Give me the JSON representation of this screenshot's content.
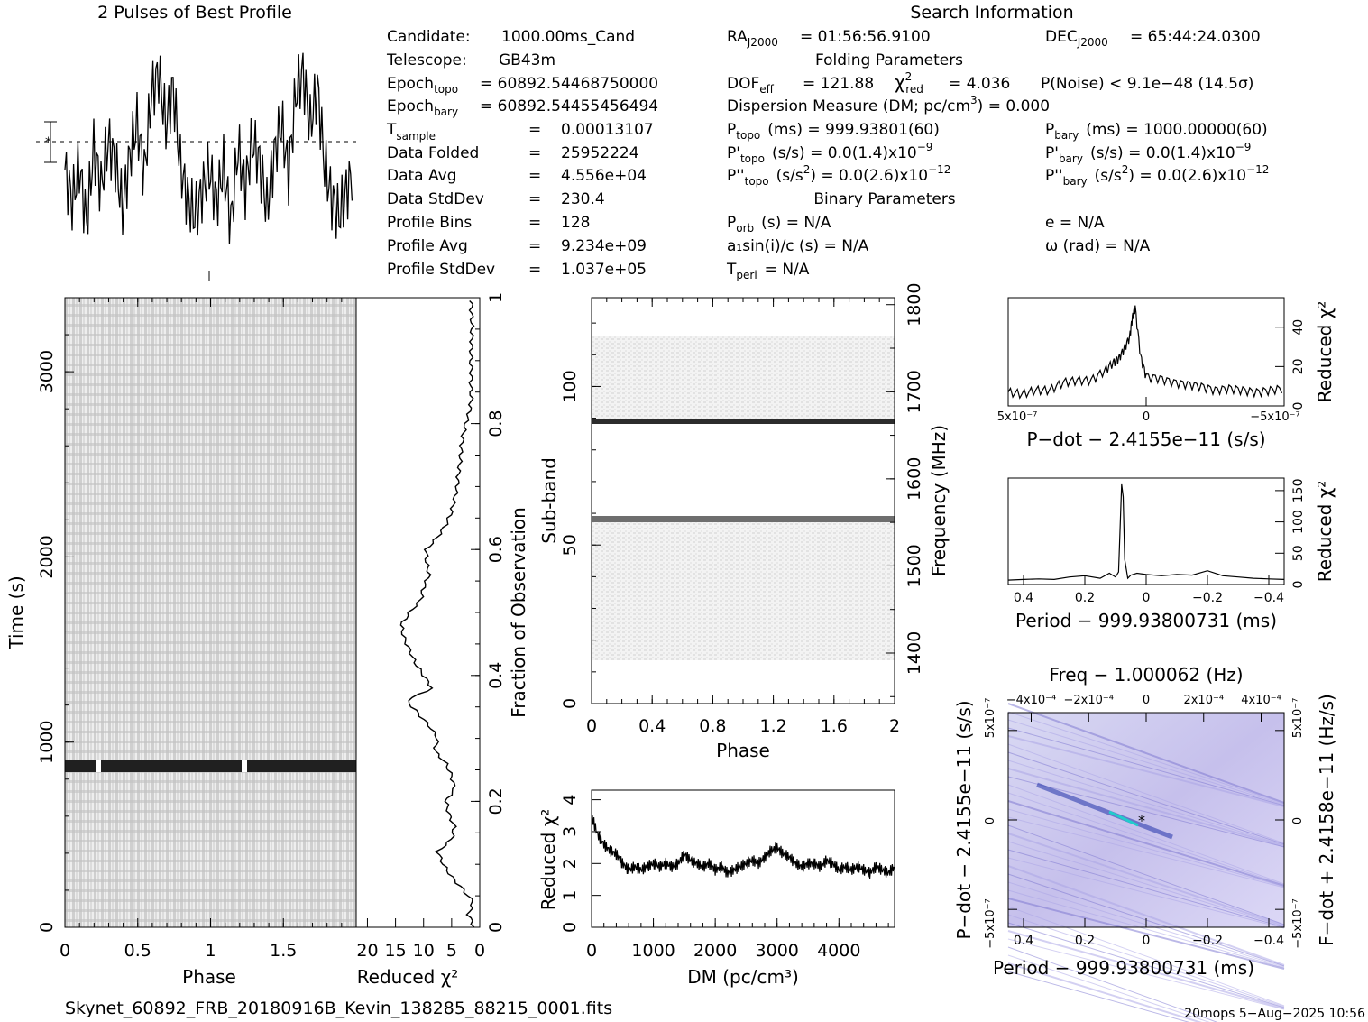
{
  "profile_title": "2 Pulses of Best Profile",
  "search_title": "Search Information",
  "candidate": {
    "candidate": {
      "label": "Candidate:",
      "value": "1000.00ms_Cand"
    },
    "telescope": {
      "label": "Telescope:",
      "value": "GB43m"
    },
    "epoch_topo": {
      "label": "Epoch",
      "sub": "topo",
      "value": "= 60892.54468750000"
    },
    "epoch_bary": {
      "label": "Epoch",
      "sub": "bary",
      "value": "= 60892.54455456494"
    },
    "t_sample": {
      "label": "T",
      "sub": "sample",
      "value": "0.00013107"
    },
    "data_folded": {
      "label": "Data Folded",
      "value": "25952224"
    },
    "data_avg": {
      "label": "Data Avg",
      "value": "4.556e+04"
    },
    "data_stddev": {
      "label": "Data StdDev",
      "value": "230.4"
    },
    "profile_bins": {
      "label": "Profile Bins",
      "value": "128"
    },
    "profile_avg": {
      "label": "Profile Avg",
      "value": "9.234e+09"
    },
    "profile_stddev": {
      "label": "Profile StdDev",
      "value": "1.037e+05"
    },
    "eq": "="
  },
  "search": {
    "ra": {
      "label": "RA",
      "sub": "J2000",
      "value": "= 01:56:56.9100"
    },
    "dec": {
      "label": "DEC",
      "sub": "J2000",
      "value": "= 65:44:24.0300"
    },
    "folding_title": "Folding Parameters",
    "dof": {
      "label": "DOF",
      "sub": "eff",
      "value": "= 121.88"
    },
    "chi": {
      "sub": "red",
      "value": "= 4.036"
    },
    "pnoise": "P(Noise) < 9.1e−48   (14.5σ)",
    "dm": "Dispersion Measure (DM; pc/cm",
    "dm_value": ") = 0.000",
    "p_topo": {
      "label": "P",
      "sub": "topo",
      "value": "(ms) =   999.93801(60)"
    },
    "p_bary": {
      "label": "P",
      "sub": "bary",
      "value": "(ms) =   1000.00000(60)"
    },
    "pd_topo": {
      "label": "P'",
      "sub": "topo",
      "value": "(s/s) = 0.0(1.4)x10",
      "exp": "−9"
    },
    "pd_bary": {
      "label": "P'",
      "sub": "bary",
      "value": "(s/s) = 0.0(1.4)x10",
      "exp": "−9"
    },
    "pdd_topo": {
      "label": "P''",
      "sub": "topo",
      "value": "(s/s",
      "value2": ") = 0.0(2.6)x10",
      "exp": "−12"
    },
    "pdd_bary": {
      "label": "P''",
      "sub": "bary",
      "value": "(s/s",
      "value2": ") = 0.0(2.6)x10",
      "exp": "−12"
    },
    "binary_title": "Binary Parameters",
    "p_orb": {
      "label": "P",
      "sub": "orb",
      "value": "(s) = N/A"
    },
    "e": "e = N/A",
    "a1": "a₁sin(i)/c (s) = N/A",
    "omega": "ω (rad) = N/A",
    "t_peri": {
      "label": "T",
      "sub": "peri",
      "value": "= N/A"
    }
  },
  "footer": {
    "filename": "Skynet_60892_FRB_20180916B_Kevin_138285_88215_0001.fits",
    "stamp": "20mops   5−Aug−2025 10:56"
  },
  "chart_data": [
    {
      "type": "line",
      "name": "profile",
      "title": "2 Pulses of Best Profile",
      "x": [
        0,
        0.05,
        0.1,
        0.15,
        0.2,
        0.25,
        0.3,
        0.35,
        0.4,
        0.45,
        0.5,
        0.55,
        0.6,
        0.65,
        0.7,
        0.75,
        0.8,
        0.85,
        0.9,
        0.95,
        1.0,
        1.05,
        1.1,
        1.15,
        1.2,
        1.25,
        1.3,
        1.35,
        1.4,
        1.45,
        1.5,
        1.55,
        1.6,
        1.65,
        1.7,
        1.75,
        1.8,
        1.85,
        1.9,
        1.95,
        2.0
      ],
      "y": [
        0.3,
        -0.6,
        0.4,
        -1.2,
        0.9,
        -0.2,
        1.1,
        0.5,
        -0.8,
        0.7,
        1.6,
        0.2,
        2.4,
        3.0,
        1.5,
        2.6,
        0.4,
        -0.5,
        -1.0,
        -0.3,
        0.3,
        -0.6,
        0.4,
        -1.2,
        0.9,
        -0.2,
        1.1,
        0.5,
        -0.8,
        0.7,
        1.6,
        0.2,
        2.4,
        3.0,
        1.5,
        2.6,
        0.4,
        -0.5,
        -1.0,
        -0.3,
        0.3
      ]
    },
    {
      "type": "heatmap",
      "name": "time-phase",
      "xlabel": "Phase",
      "ylabel": "Time (s)",
      "xlim": [
        0,
        2
      ],
      "ylim": [
        0,
        3400
      ],
      "x_ticks": [
        "0",
        "0.5",
        "1",
        "1.5"
      ],
      "y_ticks": [
        "0",
        "1000",
        "2000",
        "3000"
      ],
      "bright_row_time_s": 890
    },
    {
      "type": "line",
      "name": "time-chi2",
      "xlabel": "Reduced χ²",
      "ylabel": "Fraction of Observation",
      "x_ticks": [
        "20",
        "15",
        "10",
        "5",
        "0"
      ],
      "y_ticks": [
        "0",
        "0.2",
        "0.4",
        "0.6",
        "0.8",
        "1"
      ],
      "fraction": [
        0.0,
        0.02,
        0.04,
        0.06,
        0.08,
        0.1,
        0.12,
        0.14,
        0.16,
        0.18,
        0.2,
        0.22,
        0.24,
        0.26,
        0.28,
        0.3,
        0.32,
        0.34,
        0.36,
        0.38,
        0.4,
        0.42,
        0.44,
        0.46,
        0.48,
        0.5,
        0.52,
        0.54,
        0.56,
        0.58,
        0.6,
        0.62,
        0.64,
        0.66,
        0.68,
        0.7,
        0.72,
        0.74,
        0.76,
        0.78,
        0.8,
        0.82,
        0.84,
        0.86,
        0.88,
        0.9,
        0.92,
        0.94,
        0.96,
        0.98,
        1.0
      ],
      "chi2": [
        1.0,
        2.0,
        1.2,
        3.0,
        5.0,
        6.5,
        7.5,
        5.0,
        4.5,
        5.5,
        6.0,
        4.5,
        5.0,
        6.0,
        8.0,
        7.5,
        9.0,
        11.0,
        13.0,
        8.5,
        10.0,
        11.5,
        12.5,
        13.5,
        14.0,
        12.5,
        10.5,
        10.0,
        9.0,
        9.5,
        9.5,
        7.5,
        6.0,
        5.0,
        4.5,
        4.0,
        3.8,
        3.5,
        3.3,
        3.0,
        2.5,
        1.8,
        1.5,
        1.6,
        1.5,
        1.6,
        1.5,
        1.4,
        1.4,
        1.5,
        1.5
      ]
    },
    {
      "type": "heatmap",
      "name": "subband-phase",
      "xlabel": "Phase",
      "ylabel": "Sub-band",
      "y2label": "Frequency (MHz)",
      "xlim": [
        0,
        2
      ],
      "ylim": [
        0,
        128
      ],
      "x_ticks": [
        "0",
        "0.4",
        "0.8",
        "1.2",
        "1.6",
        "2"
      ],
      "y_ticks": [
        "0",
        "50",
        "100"
      ],
      "y2_ticks": [
        "1400",
        "1500",
        "1600",
        "1700",
        "1800"
      ],
      "active_subbands": [
        [
          13,
          58
        ],
        [
          59,
          116
        ]
      ],
      "dark_subbands": [
        58,
        89
      ]
    },
    {
      "type": "line",
      "name": "dm-chi2",
      "xlabel": "DM (pc/cm³)",
      "ylabel": "Reduced χ²",
      "xlim": [
        0,
        4900
      ],
      "ylim": [
        0,
        4.3
      ],
      "x_ticks": [
        "0",
        "1000",
        "2000",
        "3000",
        "4000"
      ],
      "y_ticks": [
        "0",
        "1",
        "2",
        "3",
        "4"
      ],
      "x": [
        0,
        100,
        200,
        300,
        400,
        500,
        600,
        700,
        800,
        900,
        1000,
        1100,
        1200,
        1300,
        1400,
        1500,
        1600,
        1700,
        1800,
        1900,
        2000,
        2100,
        2200,
        2300,
        2400,
        2500,
        2600,
        2700,
        2800,
        2900,
        3000,
        3100,
        3200,
        3300,
        3400,
        3500,
        3600,
        3700,
        3800,
        3900,
        4000,
        4100,
        4200,
        4300,
        4400,
        4500,
        4600,
        4700,
        4800,
        4900
      ],
      "y": [
        3.5,
        2.9,
        2.6,
        2.4,
        2.3,
        2.0,
        1.8,
        1.9,
        1.8,
        1.9,
        2.0,
        1.9,
        2.0,
        1.9,
        2.0,
        2.3,
        2.1,
        2.0,
        1.9,
        2.0,
        1.8,
        1.9,
        1.7,
        1.8,
        1.9,
        2.0,
        2.1,
        2.0,
        2.2,
        2.4,
        2.5,
        2.3,
        2.2,
        2.0,
        1.9,
        2.0,
        2.0,
        1.9,
        2.1,
        2.0,
        1.8,
        1.9,
        1.8,
        1.9,
        1.8,
        1.7,
        1.9,
        1.8,
        1.7,
        1.9
      ]
    },
    {
      "type": "line",
      "name": "pdot-chi2",
      "xlabel": "P−dot − 2.4155e−11 (s/s)",
      "ylabel": "Reduced χ²",
      "x_ticks": [
        "5x10⁻⁷",
        "0",
        "−5x10⁻⁷"
      ],
      "y_ticks": [
        "0",
        "20",
        "40"
      ],
      "x": [
        0.0,
        0.05,
        0.1,
        0.15,
        0.2,
        0.25,
        0.3,
        0.35,
        0.38,
        0.4,
        0.42,
        0.44,
        0.45,
        0.46,
        0.48,
        0.5,
        0.55,
        0.6,
        0.65,
        0.7,
        0.75,
        0.8,
        0.85,
        0.9,
        0.95,
        1.0
      ],
      "y": [
        7,
        6,
        8,
        8,
        12,
        13,
        13,
        18,
        22,
        24,
        29,
        35,
        45,
        50,
        25,
        15,
        14,
        12,
        11,
        10,
        8,
        9,
        8,
        7,
        8,
        9
      ]
    },
    {
      "type": "line",
      "name": "period-chi2",
      "xlabel": "Period − 999.93800731 (ms)",
      "ylabel": "Reduced χ²",
      "x_ticks": [
        "0.4",
        "0.2",
        "0",
        "−0.2",
        "−0.4"
      ],
      "y_ticks": [
        "0",
        "50",
        "100",
        "150"
      ],
      "x": [
        0.45,
        0.4,
        0.35,
        0.3,
        0.25,
        0.2,
        0.15,
        0.12,
        0.1,
        0.09,
        0.085,
        0.08,
        0.075,
        0.07,
        0.06,
        0.05,
        0.03,
        0.0,
        -0.05,
        -0.1,
        -0.15,
        -0.2,
        -0.25,
        -0.3,
        -0.35,
        -0.4,
        -0.45
      ],
      "y": [
        7,
        8,
        9,
        8,
        12,
        14,
        10,
        18,
        12,
        20,
        90,
        160,
        140,
        40,
        10,
        15,
        18,
        16,
        14,
        16,
        15,
        22,
        14,
        12,
        10,
        9,
        8
      ]
    },
    {
      "type": "heatmap",
      "name": "period-pdot",
      "title": "Freq − 1.000062 (Hz)",
      "xlabel": "Period − 999.93800731 (ms)",
      "ylabel": "P−dot − 2.4155e−11 (s/s)",
      "y2label": "F−dot + 2.4158e−11 (Hz/s)",
      "x_ticks": [
        "0.4",
        "0.2",
        "0",
        "−0.2",
        "−0.4"
      ],
      "top_ticks": [
        "−4x10⁻⁴",
        "−2x10⁻⁴",
        "0",
        "2x10⁻⁴",
        "4x10⁻⁴"
      ],
      "y_ticks": [
        "5x10⁻⁷",
        "0",
        "−5x10⁻⁷"
      ],
      "y2_ticks": [
        "−5x10⁻⁷",
        "0",
        "5x10⁻⁷"
      ]
    }
  ]
}
